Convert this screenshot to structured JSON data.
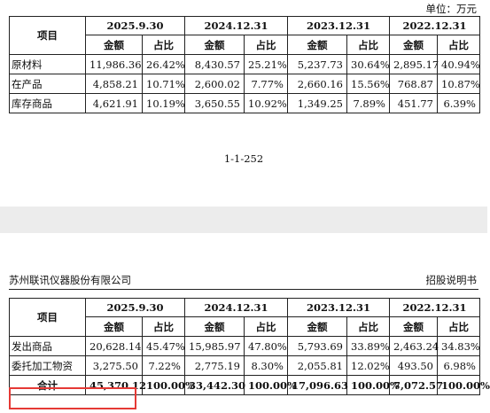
{
  "unit": "单位：万元",
  "page_number": "1-1-252",
  "header": {
    "company": "苏州联讯仪器股份有限公司",
    "doc": "招股说明书"
  },
  "columns": {
    "item": "项目",
    "periods": [
      "2025.9.30",
      "2024.12.31",
      "2023.12.31",
      "2022.12.31"
    ],
    "amount": "金额",
    "ratio": "占比"
  },
  "table1": {
    "rows": [
      {
        "label": "原材料",
        "cells": [
          "11,986.36",
          "26.42%",
          "8,430.57",
          "25.21%",
          "5,237.73",
          "30.64%",
          "2,895.17",
          "40.94%"
        ]
      },
      {
        "label": "在产品",
        "cells": [
          "4,858.21",
          "10.71%",
          "2,600.02",
          "7.77%",
          "2,660.16",
          "15.56%",
          "768.87",
          "10.87%"
        ]
      },
      {
        "label": "库存商品",
        "cells": [
          "4,621.91",
          "10.19%",
          "3,650.55",
          "10.92%",
          "1,349.25",
          "7.89%",
          "451.77",
          "6.39%"
        ]
      }
    ]
  },
  "table2": {
    "rows": [
      {
        "label": "发出商品",
        "cells": [
          "20,628.14",
          "45.47%",
          "15,985.97",
          "47.80%",
          "5,793.69",
          "33.89%",
          "2,463.24",
          "34.83%"
        ]
      },
      {
        "label": "委托加工物资",
        "cells": [
          "3,275.50",
          "7.22%",
          "2,775.19",
          "8.30%",
          "2,055.81",
          "12.02%",
          "493.50",
          "6.98%"
        ]
      }
    ],
    "total": {
      "label": "合计",
      "cells": [
        "45,370.12",
        "100.00%",
        "33,442.30",
        "100.00%",
        "17,096.63",
        "100.00%",
        "7,072.57",
        "100.00%"
      ]
    }
  },
  "colors": {
    "highlight": "#e53935",
    "page_gap": "#ececec"
  }
}
